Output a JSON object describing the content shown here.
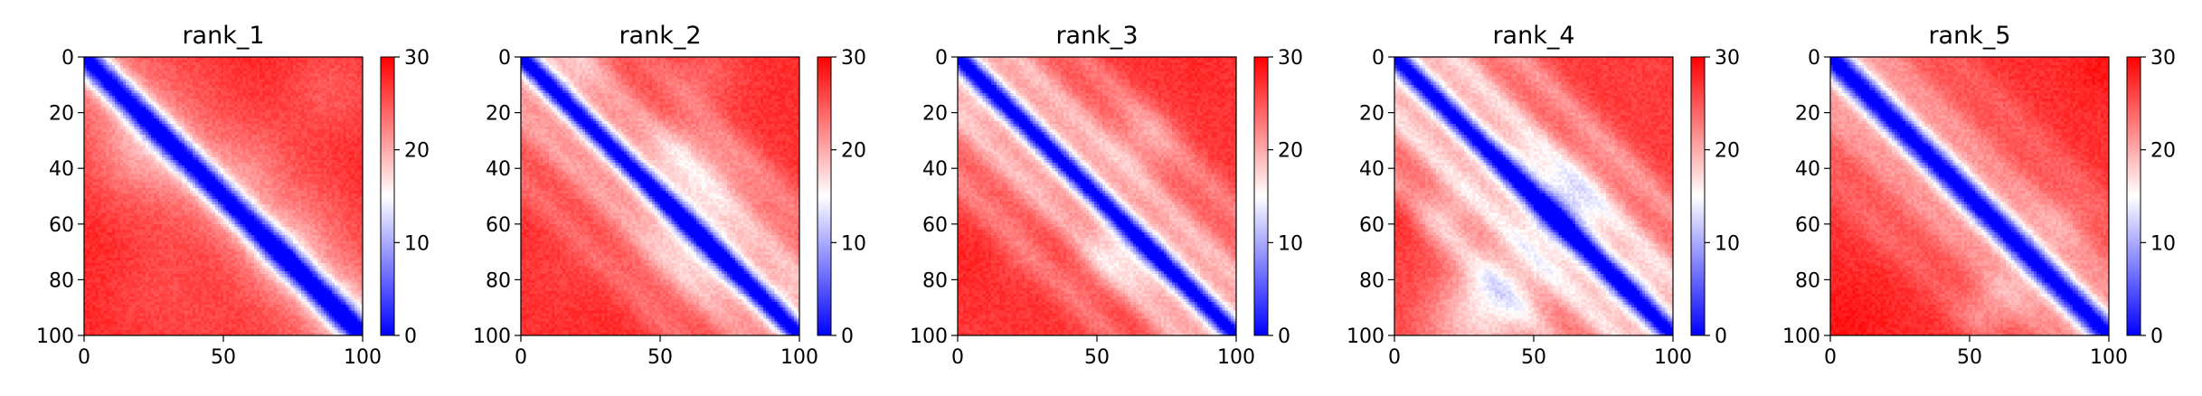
{
  "chart_data": [
    {
      "type": "heatmap",
      "title": "rank_1",
      "rows": 100,
      "cols": 100,
      "xlim": [
        0,
        100
      ],
      "ylim": [
        100,
        0
      ],
      "xticks": [
        0,
        50,
        100
      ],
      "yticks": [
        0,
        20,
        40,
        60,
        80,
        100
      ],
      "colorbar": {
        "min": 0,
        "max": 30,
        "ticks": [
          0,
          10,
          20,
          30
        ],
        "colormap": [
          "#0000ff",
          "#ffffff",
          "#ff0000"
        ]
      },
      "pattern": {
        "diag_min": 1.0,
        "diag_sigma": 5,
        "base": 24,
        "stripe": 0,
        "texture": 0.5,
        "seed": 1
      }
    },
    {
      "type": "heatmap",
      "title": "rank_2",
      "rows": 100,
      "cols": 100,
      "xlim": [
        0,
        100
      ],
      "ylim": [
        100,
        0
      ],
      "xticks": [
        0,
        50,
        100
      ],
      "yticks": [
        0,
        20,
        40,
        60,
        80,
        100
      ],
      "colorbar": {
        "min": 0,
        "max": 30,
        "ticks": [
          0,
          10,
          20,
          30
        ],
        "colormap": [
          "#0000ff",
          "#ffffff",
          "#ff0000"
        ]
      },
      "pattern": {
        "diag_min": 1.0,
        "diag_sigma": 4,
        "base": 23,
        "stripe": 0.6,
        "texture": 0.6,
        "seed": 2
      }
    },
    {
      "type": "heatmap",
      "title": "rank_3",
      "rows": 100,
      "cols": 100,
      "xlim": [
        0,
        100
      ],
      "ylim": [
        100,
        0
      ],
      "xticks": [
        0,
        50,
        100
      ],
      "yticks": [
        0,
        20,
        40,
        60,
        80,
        100
      ],
      "colorbar": {
        "min": 0,
        "max": 30,
        "ticks": [
          0,
          10,
          20,
          30
        ],
        "colormap": [
          "#0000ff",
          "#ffffff",
          "#ff0000"
        ]
      },
      "pattern": {
        "diag_min": 1.0,
        "diag_sigma": 4,
        "base": 22,
        "stripe": 0.8,
        "texture": 0.7,
        "seed": 3
      }
    },
    {
      "type": "heatmap",
      "title": "rank_4",
      "rows": 100,
      "cols": 100,
      "xlim": [
        0,
        100
      ],
      "ylim": [
        100,
        0
      ],
      "xticks": [
        0,
        50,
        100
      ],
      "yticks": [
        0,
        20,
        40,
        60,
        80,
        100
      ],
      "colorbar": {
        "min": 0,
        "max": 30,
        "ticks": [
          0,
          10,
          20,
          30
        ],
        "colormap": [
          "#0000ff",
          "#ffffff",
          "#ff0000"
        ]
      },
      "pattern": {
        "diag_min": 1.0,
        "diag_sigma": 4,
        "base": 21,
        "stripe": 1.0,
        "texture": 1.0,
        "seed": 4
      }
    },
    {
      "type": "heatmap",
      "title": "rank_5",
      "rows": 100,
      "cols": 100,
      "xlim": [
        0,
        100
      ],
      "ylim": [
        100,
        0
      ],
      "xticks": [
        0,
        50,
        100
      ],
      "yticks": [
        0,
        20,
        40,
        60,
        80,
        100
      ],
      "colorbar": {
        "min": 0,
        "max": 30,
        "ticks": [
          0,
          10,
          20,
          30
        ],
        "colormap": [
          "#0000ff",
          "#ffffff",
          "#ff0000"
        ]
      },
      "pattern": {
        "diag_min": 1.0,
        "diag_sigma": 5,
        "base": 23,
        "stripe": 0.4,
        "texture": 0.6,
        "seed": 5
      }
    }
  ]
}
